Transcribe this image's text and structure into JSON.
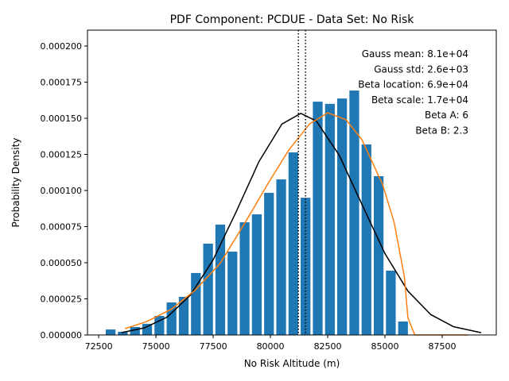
{
  "chart_data": {
    "type": "histogram",
    "title": "PDF Component: PCDUE - Data Set: No Risk",
    "xlabel": "No Risk Altitude (m)",
    "ylabel": "Probability Density",
    "bins": [
      72754,
      73286,
      73818,
      74350,
      74882,
      75414,
      75946,
      76478,
      77010,
      77542,
      78074,
      78606,
      79138,
      79670,
      80202,
      80734,
      81266,
      81798,
      82330,
      82862,
      83394,
      83926,
      84458,
      84990,
      85522,
      86054
    ],
    "values": [
      3.8e-06,
      2.2e-06,
      5.5e-06,
      7.7e-06,
      1.32e-05,
      2.25e-05,
      2.64e-05,
      4.29e-05,
      6.32e-05,
      7.64e-05,
      5.77e-05,
      7.8e-05,
      8.35e-05,
      9.84e-05,
      0.0001077,
      0.0001264,
      9.5e-05,
      0.0001615,
      0.00016,
      0.0001637,
      0.0001692,
      0.0001319,
      0.0001099,
      4.45e-05,
      9.3e-06
    ],
    "color": "#1f77b4",
    "rwidth": 0.8,
    "lines": [
      {
        "color": "#000000",
        "x": [
          73500,
          74500,
          75500,
          76500,
          77500,
          78500,
          79500,
          80500,
          81320,
          82000,
          83000,
          84000,
          85000,
          86000,
          87000,
          88000,
          89200
        ],
        "values": [
          1.66e-06,
          4.92e-06,
          1.25e-05,
          2.75e-05,
          5.21e-05,
          8.52e-05,
          0.0001201,
          0.000146,
          0.0001534,
          0.0001482,
          0.0001245,
          9.02e-05,
          5.63e-05,
          3.04e-05,
          1.41e-05,
          5.7e-06,
          1.6e-06
        ]
      },
      {
        "color": "#ff7f0e",
        "x": [
          73650,
          74600,
          75650,
          76700,
          77800,
          78900,
          79900,
          80800,
          81700,
          82500,
          83300,
          84000,
          84900,
          85400,
          85850,
          86000,
          86300,
          88600
        ],
        "values": [
          4.4e-06,
          9.3e-06,
          1.76e-05,
          3.08e-05,
          4.95e-05,
          7.8e-05,
          0.000105,
          0.000128,
          0.000146,
          0.0001538,
          0.000149,
          0.000135,
          0.000104,
          7.8e-05,
          4e-05,
          1.2e-05,
          0,
          0
        ]
      }
    ],
    "vlines": [
      81220,
      81530
    ],
    "annotations": [
      "Gauss mean: 8.1e+04",
      "Gauss std: 2.6e+03",
      "Beta location: 6.9e+04",
      "Beta scale: 1.7e+04",
      "Beta A: 6",
      "Beta B: 2.3"
    ],
    "xlim": [
      72010,
      89860
    ],
    "ylim": [
      0,
      0.000211
    ],
    "xticks": [
      72500,
      75000,
      77500,
      80000,
      82500,
      85000,
      87500
    ],
    "yticks": [
      {
        "value": 0,
        "label": "0.000000"
      },
      {
        "value": 2.5e-05,
        "label": "0.000025"
      },
      {
        "value": 5e-05,
        "label": "0.000050"
      },
      {
        "value": 7.5e-05,
        "label": "0.000075"
      },
      {
        "value": 0.0001,
        "label": "0.000100"
      },
      {
        "value": 0.000125,
        "label": "0.000125"
      },
      {
        "value": 0.00015,
        "label": "0.000150"
      },
      {
        "value": 0.000175,
        "label": "0.000175"
      },
      {
        "value": 0.0002,
        "label": "0.000200"
      }
    ]
  }
}
